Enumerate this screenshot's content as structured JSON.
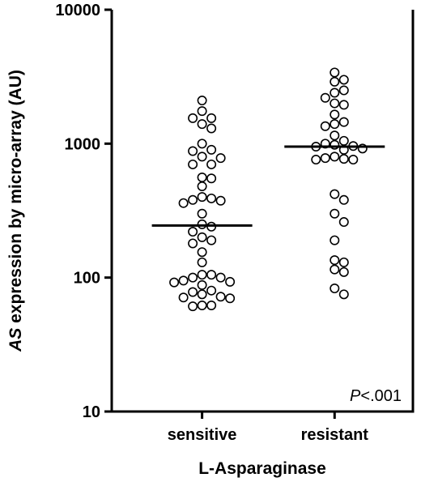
{
  "chart_data": {
    "type": "scatter",
    "xlabel": "L-Asparaginase",
    "ylabel_italic": "AS",
    "ylabel_rest": " expression by micro-array (AU)",
    "categories": [
      "sensitive",
      "resistant"
    ],
    "yscale": "log",
    "ylim": [
      10,
      10000
    ],
    "yticks": [
      10,
      100,
      1000,
      10000
    ],
    "ytick_labels": [
      "10",
      "100",
      "1000",
      "10000"
    ],
    "annotation_italic": "P",
    "annotation_rest": "<.001",
    "series": [
      {
        "category": "sensitive",
        "median": 245,
        "values": [
          2100,
          1750,
          1550,
          1550,
          1400,
          1300,
          1000,
          900,
          880,
          800,
          780,
          700,
          700,
          560,
          550,
          480,
          400,
          390,
          380,
          375,
          360,
          300,
          250,
          240,
          220,
          200,
          190,
          180,
          155,
          130,
          105,
          105,
          100,
          100,
          95,
          93,
          92,
          88,
          80,
          78,
          75,
          72,
          71,
          70,
          62,
          62,
          61
        ]
      },
      {
        "category": "resistant",
        "median": 950,
        "values": [
          3400,
          3000,
          2900,
          2500,
          2400,
          2200,
          2000,
          1950,
          1650,
          1450,
          1400,
          1350,
          1150,
          1050,
          1000,
          980,
          960,
          950,
          920,
          900,
          800,
          780,
          770,
          760,
          760,
          420,
          380,
          300,
          260,
          190,
          135,
          130,
          115,
          110,
          83,
          75
        ]
      }
    ]
  }
}
